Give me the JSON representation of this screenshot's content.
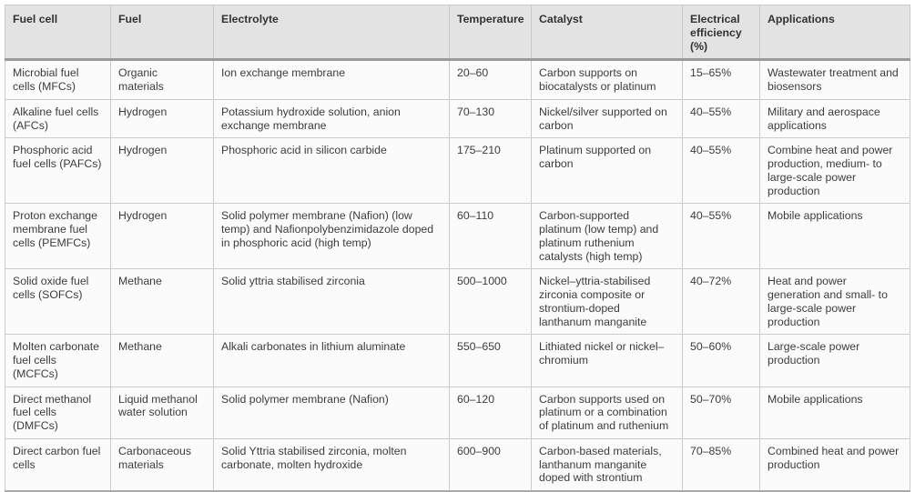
{
  "table": {
    "columns": [
      "Fuel cell",
      "Fuel",
      "Electrolyte",
      "Temperature",
      "Catalyst",
      "Electrical efficiency (%)",
      "Applications"
    ],
    "rows": [
      [
        "Microbial fuel cells (MFCs)",
        "Organic materials",
        "Ion exchange membrane",
        "20–60",
        "Carbon supports on biocatalysts or platinum",
        "15–65%",
        "Wastewater treatment and biosensors"
      ],
      [
        "Alkaline fuel cells (AFCs)",
        "Hydrogen",
        "Potassium hydroxide solution, anion exchange membrane",
        "70–130",
        "Nickel/silver supported on carbon",
        "40–55%",
        "Military and aerospace applications"
      ],
      [
        "Phosphoric acid fuel cells (PAFCs)",
        "Hydrogen",
        "Phosphoric acid in silicon carbide",
        "175–210",
        "Platinum supported on carbon",
        "40–55%",
        "Combine heat and power production, medium- to large-scale power production"
      ],
      [
        "Proton exchange membrane fuel cells (PEMFCs)",
        "Hydrogen",
        "Solid polymer membrane (Nafion) (low temp) and Nafionpolybenzimidazole doped in phosphoric acid (high temp)",
        "60–110",
        "Carbon-supported platinum (low temp) and platinum ruthenium catalysts (high temp)",
        "40–55%",
        "Mobile applications"
      ],
      [
        "Solid oxide fuel cells (SOFCs)",
        "Methane",
        "Solid yttria stabilised zirconia",
        "500–1000",
        "Nickel–yttria-stabilised zirconia composite or strontium-doped lanthanum manganite",
        "40–72%",
        "Heat and power generation and small- to large-scale power production"
      ],
      [
        "Molten carbonate fuel cells (MCFCs)",
        "Methane",
        "Alkali carbonates in lithium aluminate",
        "550–650",
        "Lithiated nickel or nickel–chromium",
        "50–60%",
        "Large-scale power production"
      ],
      [
        "Direct methanol fuel cells (DMFCs)",
        "Liquid methanol water solution",
        "Solid polymer membrane (Nafion)",
        "60–120",
        "Carbon supports used on platinum or a combination of platinum and ruthenium",
        "50–70%",
        "Mobile applications"
      ],
      [
        "Direct carbon fuel cells",
        "Carbonaceous materials",
        "Solid Yttria stabilised zirconia, molten carbonate, molten hydroxide",
        "600–900",
        "Carbon-based materials, lanthanum manganite doped with strontium",
        "70–85%",
        "Combined heat and power production"
      ]
    ]
  },
  "colors": {
    "header_bg": "#e3e3e3",
    "body_bg": "#fbfbfb",
    "grid_border": "#cbcbcb",
    "header_rule": "#9a9a9a",
    "bottom_rule": "#a9a9a9",
    "text": "#3c3c3c"
  }
}
